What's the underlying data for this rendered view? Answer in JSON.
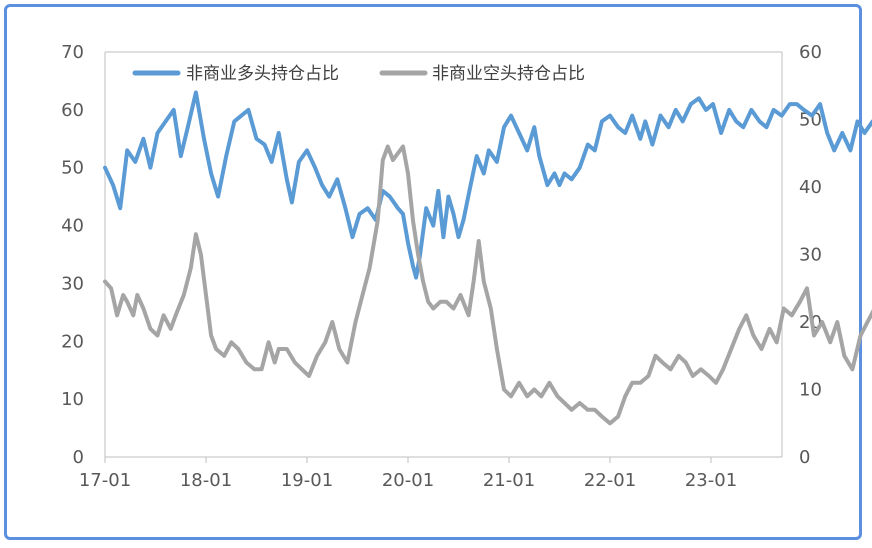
{
  "chart_data": {
    "type": "line",
    "title": "",
    "xlabel": "",
    "ylabel": "",
    "x_tick_labels": [
      "17-01",
      "18-01",
      "19-01",
      "20-01",
      "21-01",
      "22-01",
      "23-01"
    ],
    "y_left_ticks": [
      "0",
      "10",
      "20",
      "30",
      "40",
      "50",
      "60",
      "70"
    ],
    "y_right_ticks": [
      "0",
      "10",
      "20",
      "30",
      "40",
      "50",
      "60"
    ],
    "ylim_left": [
      0,
      70
    ],
    "ylim_right": [
      0,
      60
    ],
    "grid": false,
    "legend_position": "top",
    "series": [
      {
        "name": "非商业多头持仓占比",
        "axis": "left",
        "color": "#5b9bd5",
        "points": [
          [
            0.0,
            50
          ],
          [
            0.08,
            47
          ],
          [
            0.15,
            43
          ],
          [
            0.22,
            53
          ],
          [
            0.3,
            51
          ],
          [
            0.38,
            55
          ],
          [
            0.45,
            50
          ],
          [
            0.52,
            56
          ],
          [
            0.6,
            58
          ],
          [
            0.68,
            60
          ],
          [
            0.75,
            52
          ],
          [
            0.82,
            57
          ],
          [
            0.9,
            63
          ],
          [
            0.98,
            55
          ],
          [
            1.05,
            49
          ],
          [
            1.12,
            45
          ],
          [
            1.2,
            52
          ],
          [
            1.28,
            58
          ],
          [
            1.35,
            59
          ],
          [
            1.42,
            60
          ],
          [
            1.5,
            55
          ],
          [
            1.58,
            54
          ],
          [
            1.65,
            51
          ],
          [
            1.72,
            56
          ],
          [
            1.8,
            48
          ],
          [
            1.85,
            44
          ],
          [
            1.92,
            51
          ],
          [
            2.0,
            53
          ],
          [
            2.08,
            50
          ],
          [
            2.15,
            47
          ],
          [
            2.22,
            45
          ],
          [
            2.3,
            48
          ],
          [
            2.38,
            43
          ],
          [
            2.45,
            38
          ],
          [
            2.52,
            42
          ],
          [
            2.6,
            43
          ],
          [
            2.68,
            41
          ],
          [
            2.75,
            46
          ],
          [
            2.82,
            45
          ],
          [
            2.9,
            43
          ],
          [
            2.95,
            42
          ],
          [
            3.0,
            37
          ],
          [
            3.05,
            33
          ],
          [
            3.08,
            31
          ],
          [
            3.12,
            35
          ],
          [
            3.18,
            43
          ],
          [
            3.25,
            40
          ],
          [
            3.3,
            46
          ],
          [
            3.35,
            38
          ],
          [
            3.4,
            45
          ],
          [
            3.45,
            42
          ],
          [
            3.5,
            38
          ],
          [
            3.55,
            41
          ],
          [
            3.62,
            47
          ],
          [
            3.68,
            52
          ],
          [
            3.75,
            49
          ],
          [
            3.8,
            53
          ],
          [
            3.88,
            51
          ],
          [
            3.95,
            57
          ],
          [
            4.02,
            59
          ],
          [
            4.1,
            56
          ],
          [
            4.18,
            53
          ],
          [
            4.25,
            57
          ],
          [
            4.3,
            52
          ],
          [
            4.38,
            47
          ],
          [
            4.45,
            49
          ],
          [
            4.5,
            47
          ],
          [
            4.55,
            49
          ],
          [
            4.62,
            48
          ],
          [
            4.7,
            50
          ],
          [
            4.78,
            54
          ],
          [
            4.85,
            53
          ],
          [
            4.92,
            58
          ],
          [
            5.0,
            59
          ],
          [
            5.08,
            57
          ],
          [
            5.15,
            56
          ],
          [
            5.22,
            59
          ],
          [
            5.3,
            55
          ],
          [
            5.35,
            58
          ],
          [
            5.42,
            54
          ],
          [
            5.5,
            59
          ],
          [
            5.58,
            57
          ],
          [
            5.65,
            60
          ],
          [
            5.72,
            58
          ],
          [
            5.8,
            61
          ],
          [
            5.88,
            62
          ],
          [
            5.95,
            60
          ],
          [
            6.02,
            61
          ],
          [
            6.1,
            56
          ],
          [
            6.18,
            60
          ],
          [
            6.25,
            58
          ],
          [
            6.32,
            57
          ],
          [
            6.4,
            60
          ],
          [
            6.48,
            58
          ],
          [
            6.55,
            57
          ],
          [
            6.62,
            60
          ],
          [
            6.7,
            59
          ],
          [
            6.78,
            61
          ],
          [
            6.85,
            61
          ],
          [
            6.92,
            60
          ],
          [
            7.0,
            59
          ],
          [
            7.08,
            61
          ],
          [
            7.15,
            56
          ],
          [
            7.22,
            53
          ],
          [
            7.3,
            56
          ],
          [
            7.38,
            53
          ],
          [
            7.45,
            58
          ],
          [
            7.52,
            56
          ],
          [
            7.6,
            58
          ],
          [
            7.68,
            53
          ],
          [
            7.75,
            54
          ],
          [
            7.82,
            53
          ],
          [
            7.9,
            49
          ],
          [
            7.98,
            50
          ],
          [
            8.05,
            47
          ],
          [
            8.12,
            50
          ],
          [
            8.2,
            48
          ],
          [
            8.28,
            51
          ],
          [
            8.35,
            47
          ],
          [
            8.42,
            50
          ],
          [
            8.5,
            52
          ],
          [
            8.58,
            50
          ],
          [
            8.65,
            52
          ],
          [
            8.72,
            48
          ],
          [
            8.8,
            55
          ],
          [
            8.88,
            53
          ],
          [
            8.95,
            54
          ],
          [
            9.02,
            51
          ],
          [
            9.1,
            54
          ],
          [
            9.15,
            50
          ],
          [
            9.22,
            55
          ],
          [
            9.3,
            53
          ],
          [
            9.38,
            54
          ],
          [
            9.45,
            53
          ]
        ]
      },
      {
        "name": "非商业空头持仓占比",
        "axis": "right",
        "color": "#a5a5a5",
        "points": [
          [
            0.0,
            26
          ],
          [
            0.06,
            25
          ],
          [
            0.12,
            21
          ],
          [
            0.18,
            24
          ],
          [
            0.22,
            23
          ],
          [
            0.28,
            21
          ],
          [
            0.32,
            24
          ],
          [
            0.38,
            22
          ],
          [
            0.45,
            19
          ],
          [
            0.52,
            18
          ],
          [
            0.58,
            21
          ],
          [
            0.65,
            19
          ],
          [
            0.7,
            21
          ],
          [
            0.78,
            24
          ],
          [
            0.85,
            28
          ],
          [
            0.9,
            33
          ],
          [
            0.95,
            30
          ],
          [
            1.0,
            24
          ],
          [
            1.05,
            18
          ],
          [
            1.1,
            16
          ],
          [
            1.18,
            15
          ],
          [
            1.25,
            17
          ],
          [
            1.32,
            16
          ],
          [
            1.4,
            14
          ],
          [
            1.48,
            13
          ],
          [
            1.55,
            13
          ],
          [
            1.62,
            17
          ],
          [
            1.68,
            14
          ],
          [
            1.72,
            16
          ],
          [
            1.8,
            16
          ],
          [
            1.88,
            14
          ],
          [
            1.95,
            13
          ],
          [
            2.02,
            12
          ],
          [
            2.1,
            15
          ],
          [
            2.18,
            17
          ],
          [
            2.25,
            20
          ],
          [
            2.32,
            16
          ],
          [
            2.4,
            14
          ],
          [
            2.48,
            20
          ],
          [
            2.55,
            24
          ],
          [
            2.62,
            28
          ],
          [
            2.7,
            35
          ],
          [
            2.75,
            44
          ],
          [
            2.8,
            46
          ],
          [
            2.85,
            44
          ],
          [
            2.9,
            45
          ],
          [
            2.95,
            46
          ],
          [
            3.0,
            42
          ],
          [
            3.05,
            35
          ],
          [
            3.1,
            30
          ],
          [
            3.15,
            26
          ],
          [
            3.2,
            23
          ],
          [
            3.25,
            22
          ],
          [
            3.32,
            23
          ],
          [
            3.38,
            23
          ],
          [
            3.45,
            22
          ],
          [
            3.52,
            24
          ],
          [
            3.6,
            21
          ],
          [
            3.65,
            26
          ],
          [
            3.7,
            32
          ],
          [
            3.75,
            26
          ],
          [
            3.82,
            22
          ],
          [
            3.88,
            16
          ],
          [
            3.95,
            10
          ],
          [
            4.02,
            9
          ],
          [
            4.1,
            11
          ],
          [
            4.18,
            9
          ],
          [
            4.25,
            10
          ],
          [
            4.32,
            9
          ],
          [
            4.4,
            11
          ],
          [
            4.48,
            9
          ],
          [
            4.55,
            8
          ],
          [
            4.62,
            7
          ],
          [
            4.7,
            8
          ],
          [
            4.78,
            7
          ],
          [
            4.85,
            7
          ],
          [
            4.92,
            6
          ],
          [
            5.0,
            5
          ],
          [
            5.08,
            6
          ],
          [
            5.15,
            9
          ],
          [
            5.22,
            11
          ],
          [
            5.3,
            11
          ],
          [
            5.38,
            12
          ],
          [
            5.45,
            15
          ],
          [
            5.52,
            14
          ],
          [
            5.6,
            13
          ],
          [
            5.68,
            15
          ],
          [
            5.75,
            14
          ],
          [
            5.82,
            12
          ],
          [
            5.9,
            13
          ],
          [
            5.98,
            12
          ],
          [
            6.05,
            11
          ],
          [
            6.12,
            13
          ],
          [
            6.2,
            16
          ],
          [
            6.28,
            19
          ],
          [
            6.35,
            21
          ],
          [
            6.42,
            18
          ],
          [
            6.5,
            16
          ],
          [
            6.58,
            19
          ],
          [
            6.65,
            17
          ],
          [
            6.72,
            22
          ],
          [
            6.8,
            21
          ],
          [
            6.88,
            23
          ],
          [
            6.95,
            25
          ],
          [
            7.02,
            18
          ],
          [
            7.1,
            20
          ],
          [
            7.18,
            17
          ],
          [
            7.25,
            20
          ],
          [
            7.32,
            15
          ],
          [
            7.4,
            13
          ],
          [
            7.48,
            18
          ],
          [
            7.55,
            20
          ],
          [
            7.62,
            22
          ],
          [
            7.7,
            26
          ],
          [
            7.78,
            31
          ],
          [
            7.85,
            27
          ],
          [
            7.92,
            32
          ],
          [
            8.0,
            34
          ],
          [
            8.08,
            31
          ],
          [
            8.15,
            23
          ],
          [
            8.22,
            22
          ],
          [
            8.3,
            20
          ],
          [
            8.38,
            21
          ],
          [
            8.45,
            25
          ],
          [
            8.52,
            23
          ],
          [
            8.6,
            19
          ],
          [
            8.65,
            13
          ],
          [
            8.72,
            14
          ],
          [
            8.8,
            14
          ],
          [
            8.88,
            15
          ],
          [
            8.95,
            16
          ],
          [
            9.02,
            15
          ],
          [
            9.1,
            18
          ],
          [
            9.18,
            23
          ],
          [
            9.22,
            29
          ],
          [
            9.28,
            23
          ],
          [
            9.35,
            24
          ],
          [
            9.45,
            26
          ]
        ]
      }
    ]
  }
}
